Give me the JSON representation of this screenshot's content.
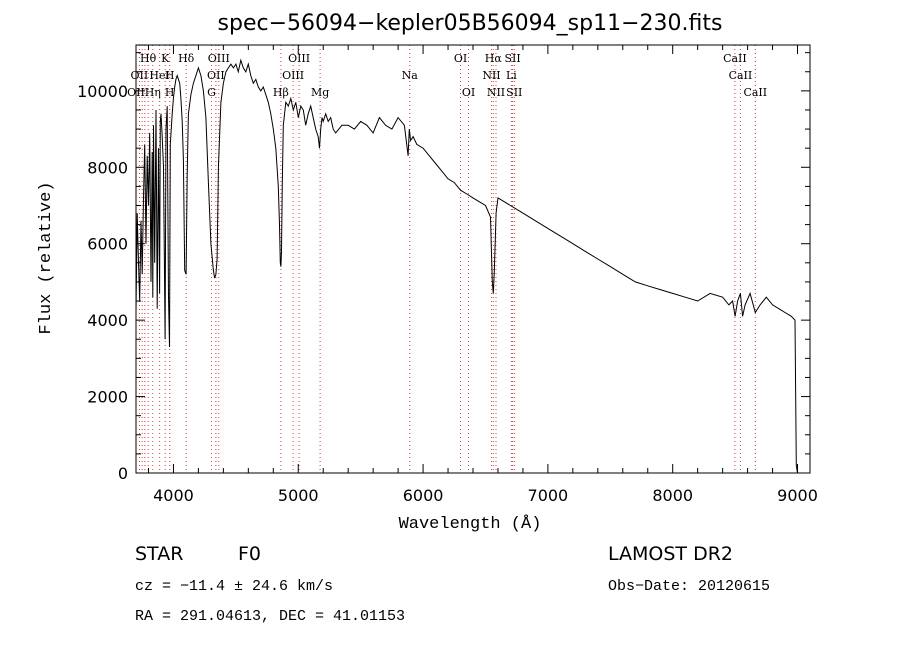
{
  "chart_data": {
    "type": "line",
    "title": "spec−56094−kepler05B56094_sp11−230.fits",
    "xlabel": "Wavelength (Å)",
    "ylabel": "Flux (relative)",
    "xlim": [
      3700,
      9100
    ],
    "ylim": [
      0,
      11200
    ],
    "x_ticks": [
      4000,
      5000,
      6000,
      7000,
      8000,
      9000
    ],
    "y_ticks": [
      0,
      2000,
      4000,
      6000,
      8000,
      10000
    ],
    "grid": false,
    "series": [
      {
        "x": [
          3700,
          3710,
          3720,
          3730,
          3740,
          3750,
          3760,
          3770,
          3780,
          3790,
          3800,
          3810,
          3820,
          3830,
          3835,
          3840,
          3850,
          3860,
          3870,
          3880,
          3889,
          3895,
          3900,
          3910,
          3920,
          3933,
          3940,
          3950,
          3960,
          3968,
          3975,
          3990,
          4000,
          4010,
          4020,
          4030,
          4050,
          4060,
          4070,
          4080,
          4090,
          4101,
          4110,
          4120,
          4140,
          4160,
          4180,
          4200,
          4220,
          4240,
          4260,
          4280,
          4300,
          4320,
          4330,
          4340,
          4350,
          4360,
          4380,
          4400,
          4420,
          4440,
          4460,
          4480,
          4500,
          4520,
          4540,
          4560,
          4580,
          4600,
          4620,
          4640,
          4660,
          4680,
          4700,
          4720,
          4740,
          4760,
          4780,
          4800,
          4820,
          4840,
          4850,
          4856,
          4861,
          4866,
          4872,
          4880,
          4900,
          4920,
          4940,
          4960,
          4980,
          5000,
          5020,
          5040,
          5060,
          5080,
          5100,
          5120,
          5140,
          5160,
          5170,
          5180,
          5190,
          5200,
          5220,
          5240,
          5260,
          5280,
          5300,
          5350,
          5400,
          5450,
          5500,
          5550,
          5600,
          5650,
          5700,
          5750,
          5800,
          5850,
          5880,
          5890,
          5900,
          5920,
          5950,
          6000,
          6050,
          6100,
          6150,
          6200,
          6250,
          6300,
          6350,
          6400,
          6450,
          6500,
          6540,
          6555,
          6563,
          6570,
          6585,
          6600,
          6650,
          6700,
          6750,
          6800,
          6900,
          7000,
          7100,
          7200,
          7300,
          7400,
          7500,
          7600,
          7700,
          7800,
          7900,
          8000,
          8100,
          8200,
          8300,
          8400,
          8450,
          8480,
          8500,
          8520,
          8542,
          8560,
          8580,
          8620,
          8662,
          8700,
          8750,
          8800,
          8850,
          8900,
          8950,
          8980,
          8990,
          9000
        ],
        "y": [
          4200,
          6800,
          5500,
          4500,
          6600,
          5200,
          7200,
          8600,
          6000,
          8300,
          7000,
          8900,
          5000,
          8400,
          4600,
          9100,
          5500,
          9500,
          4300,
          8500,
          4700,
          9200,
          9400,
          8800,
          8000,
          3500,
          9000,
          9600,
          4600,
          3300,
          8600,
          9400,
          9800,
          10100,
          10300,
          10400,
          10200,
          9800,
          9200,
          8200,
          5300,
          5200,
          7800,
          9400,
          9900,
          10200,
          10400,
          10600,
          10400,
          10000,
          9300,
          7600,
          6000,
          5300,
          5100,
          5200,
          5600,
          8000,
          9700,
          10200,
          10500,
          10600,
          10700,
          10600,
          10700,
          10500,
          10800,
          10600,
          10500,
          10700,
          10400,
          10200,
          10300,
          10100,
          10000,
          10100,
          9900,
          9700,
          9400,
          9000,
          8500,
          7500,
          6500,
          5500,
          5400,
          5800,
          7600,
          9100,
          9700,
          9600,
          9800,
          9500,
          9700,
          9300,
          9600,
          9500,
          9100,
          9400,
          9600,
          9300,
          9000,
          8800,
          8500,
          9000,
          9300,
          9200,
          9400,
          9200,
          9300,
          9000,
          8900,
          9100,
          9100,
          9000,
          9200,
          9100,
          8900,
          9300,
          9100,
          9000,
          9300,
          9100,
          8300,
          9000,
          8700,
          8800,
          8600,
          8500,
          8300,
          8100,
          7900,
          7700,
          7600,
          7400,
          7300,
          7200,
          7100,
          7000,
          6700,
          5000,
          4700,
          5200,
          6800,
          7200,
          7100,
          7000,
          6900,
          6800,
          6600,
          6400,
          6200,
          6000,
          5800,
          5600,
          5400,
          5200,
          5000,
          4900,
          4800,
          4700,
          4600,
          4500,
          4700,
          4600,
          4400,
          4500,
          4100,
          4500,
          4700,
          4100,
          4400,
          4700,
          4200,
          4400,
          4600,
          4400,
          4300,
          4200,
          4100,
          4000,
          200,
          0
        ]
      }
    ],
    "line_labels": [
      {
        "text": "Hθ",
        "x": 3797,
        "row": 0
      },
      {
        "text": "K",
        "x": 3934,
        "row": 0
      },
      {
        "text": "Hδ",
        "x": 4102,
        "row": 0
      },
      {
        "text": "OIII",
        "x": 4363,
        "row": 0
      },
      {
        "text": "OIII",
        "x": 5007,
        "row": 0
      },
      {
        "text": "OI",
        "x": 6300,
        "row": 0
      },
      {
        "text": "Hα",
        "x": 6563,
        "row": 0
      },
      {
        "text": "SII",
        "x": 6717,
        "row": 0
      },
      {
        "text": "CaII",
        "x": 8498,
        "row": 0
      },
      {
        "text": "OII",
        "x": 3727,
        "row": 1
      },
      {
        "text": "HeI",
        "x": 3889,
        "row": 1
      },
      {
        "text": "H",
        "x": 3970,
        "row": 1
      },
      {
        "text": "OII",
        "x": 4340,
        "row": 1
      },
      {
        "text": "OIII",
        "x": 4959,
        "row": 1
      },
      {
        "text": "Na",
        "x": 5893,
        "row": 1
      },
      {
        "text": "NII",
        "x": 6548,
        "row": 1
      },
      {
        "text": "Li",
        "x": 6708,
        "row": 1
      },
      {
        "text": "CaII",
        "x": 8542,
        "row": 1
      },
      {
        "text": "OII",
        "x": 3700,
        "row": 2
      },
      {
        "text": "Hη",
        "x": 3835,
        "row": 2
      },
      {
        "text": "H",
        "x": 3970,
        "row": 2
      },
      {
        "text": "G",
        "x": 4305,
        "row": 2
      },
      {
        "text": "Hβ",
        "x": 4861,
        "row": 2
      },
      {
        "text": "Mg",
        "x": 5175,
        "row": 2
      },
      {
        "text": "OI",
        "x": 6364,
        "row": 2
      },
      {
        "text": "NII",
        "x": 6584,
        "row": 2
      },
      {
        "text": "SII",
        "x": 6731,
        "row": 2
      },
      {
        "text": "CaII",
        "x": 8662,
        "row": 2
      }
    ],
    "reference_lines": [
      3727,
      3750,
      3771,
      3798,
      3835,
      3889,
      3934,
      3970,
      4102,
      4305,
      4340,
      4363,
      4861,
      4959,
      5007,
      5175,
      5893,
      6300,
      6364,
      6548,
      6563,
      6584,
      6708,
      6717,
      6731,
      8498,
      8542,
      8662
    ]
  },
  "info": {
    "object_type": "STAR",
    "subclass": "F0",
    "survey": "LAMOST DR2",
    "cz": "cz = −11.4 ± 24.6 km/s",
    "obs_date": "Obs−Date: 20120615",
    "coords": "RA = 291.04613, DEC =  41.01153"
  },
  "colors": {
    "spectrum": "#000000",
    "reference_line": "#d04040",
    "axes": "#000000"
  }
}
